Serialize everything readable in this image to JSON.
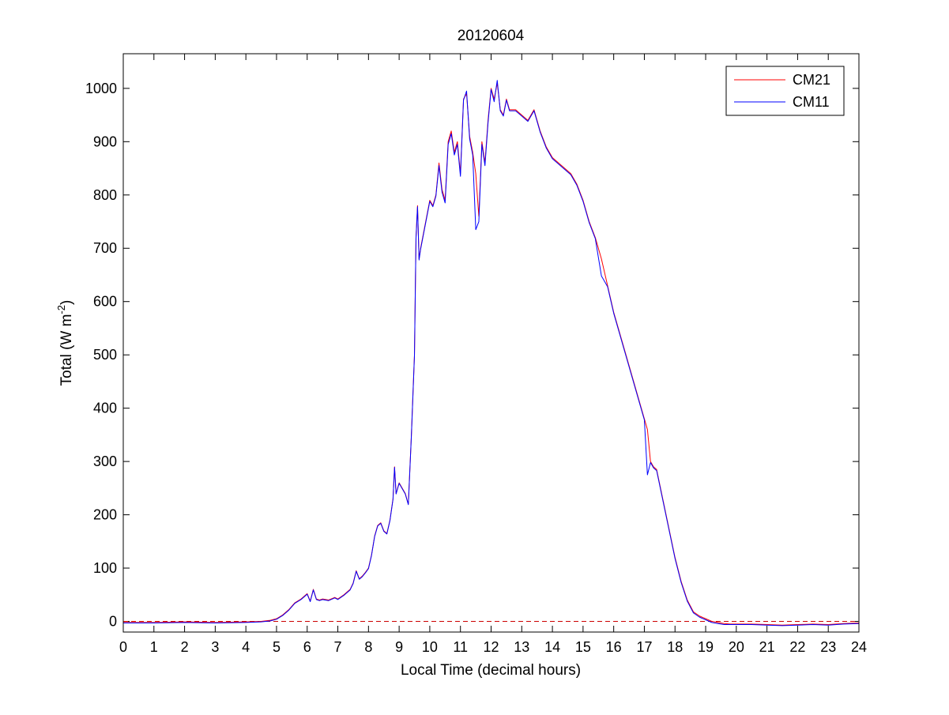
{
  "colors": {
    "background": "#ffffff",
    "axes": "#000000",
    "cm21": "#ff0000",
    "cm11": "#0000ff",
    "zero_line": "#cc0000"
  },
  "chart_data": {
    "type": "line",
    "title": "20120604",
    "xlabel": "Local Time (decimal hours)",
    "ylabel": {
      "main": "Total (W m",
      "superscript": "-2",
      "close": ")"
    },
    "xlim": [
      0,
      24
    ],
    "ylim": [
      -20,
      1065
    ],
    "xticks": [
      0,
      1,
      2,
      3,
      4,
      5,
      6,
      7,
      8,
      9,
      10,
      11,
      12,
      13,
      14,
      15,
      16,
      17,
      18,
      19,
      20,
      21,
      22,
      23,
      24
    ],
    "yticks": [
      0,
      100,
      200,
      300,
      400,
      500,
      600,
      700,
      800,
      900,
      1000
    ],
    "grid": false,
    "legend_position": "top-right",
    "reference_line": {
      "y": 0,
      "style": "dashed"
    },
    "series": [
      {
        "name": "CM21",
        "color": "#ff0000",
        "x": [
          0,
          1,
          2,
          3,
          4,
          4.5,
          4.8,
          5.0,
          5.2,
          5.4,
          5.6,
          5.8,
          6.0,
          6.1,
          6.2,
          6.3,
          6.4,
          6.5,
          6.7,
          6.9,
          7.0,
          7.2,
          7.4,
          7.5,
          7.6,
          7.7,
          7.8,
          7.9,
          8.0,
          8.1,
          8.2,
          8.3,
          8.4,
          8.5,
          8.6,
          8.7,
          8.8,
          8.85,
          8.9,
          9.0,
          9.1,
          9.2,
          9.3,
          9.4,
          9.5,
          9.55,
          9.6,
          9.65,
          9.7,
          9.8,
          9.9,
          10.0,
          10.1,
          10.2,
          10.3,
          10.4,
          10.5,
          10.6,
          10.7,
          10.8,
          10.9,
          11.0,
          11.1,
          11.2,
          11.3,
          11.4,
          11.5,
          11.6,
          11.7,
          11.8,
          11.9,
          12.0,
          12.1,
          12.2,
          12.3,
          12.4,
          12.5,
          12.6,
          12.8,
          13.0,
          13.2,
          13.4,
          13.6,
          13.8,
          14.0,
          14.2,
          14.4,
          14.6,
          14.8,
          15.0,
          15.2,
          15.4,
          15.6,
          15.8,
          16.0,
          16.2,
          16.4,
          16.6,
          16.8,
          17.0,
          17.1,
          17.2,
          17.3,
          17.4,
          17.6,
          17.8,
          18.0,
          18.2,
          18.4,
          18.6,
          18.8,
          19.0,
          19.2,
          19.4,
          19.6,
          19.8,
          20.0,
          20.5,
          21.0,
          21.5,
          22.0,
          22.5,
          23.0,
          23.5,
          24.0
        ],
        "y": [
          -2,
          -2,
          -1,
          -2,
          -1,
          0,
          2,
          5,
          12,
          22,
          35,
          42,
          52,
          38,
          60,
          42,
          40,
          42,
          40,
          45,
          42,
          50,
          60,
          72,
          95,
          80,
          85,
          92,
          100,
          125,
          160,
          180,
          185,
          170,
          165,
          190,
          230,
          290,
          240,
          260,
          250,
          240,
          220,
          350,
          500,
          720,
          780,
          680,
          700,
          730,
          760,
          790,
          780,
          800,
          860,
          810,
          790,
          900,
          920,
          880,
          900,
          840,
          980,
          990,
          910,
          880,
          840,
          760,
          900,
          860,
          940,
          1000,
          980,
          1010,
          960,
          950,
          980,
          960,
          960,
          950,
          940,
          960,
          920,
          890,
          870,
          860,
          850,
          840,
          820,
          790,
          750,
          720,
          680,
          630,
          580,
          540,
          500,
          460,
          420,
          380,
          360,
          300,
          290,
          285,
          230,
          175,
          120,
          75,
          40,
          18,
          10,
          5,
          0,
          -2,
          -4,
          -5,
          -5,
          -5,
          -6,
          -7,
          -6,
          -5,
          -6,
          -4,
          -3
        ]
      },
      {
        "name": "CM11",
        "color": "#0000ff",
        "x": [
          0,
          1,
          2,
          3,
          4,
          4.5,
          4.8,
          5.0,
          5.2,
          5.4,
          5.6,
          5.8,
          6.0,
          6.1,
          6.2,
          6.3,
          6.4,
          6.5,
          6.7,
          6.9,
          7.0,
          7.2,
          7.4,
          7.5,
          7.6,
          7.7,
          7.8,
          7.9,
          8.0,
          8.1,
          8.2,
          8.3,
          8.4,
          8.5,
          8.6,
          8.7,
          8.8,
          8.85,
          8.9,
          9.0,
          9.1,
          9.2,
          9.3,
          9.4,
          9.5,
          9.55,
          9.6,
          9.65,
          9.7,
          9.8,
          9.9,
          10.0,
          10.1,
          10.2,
          10.3,
          10.4,
          10.5,
          10.6,
          10.7,
          10.8,
          10.9,
          11.0,
          11.1,
          11.2,
          11.3,
          11.4,
          11.5,
          11.6,
          11.7,
          11.8,
          11.9,
          12.0,
          12.1,
          12.2,
          12.3,
          12.4,
          12.5,
          12.6,
          12.8,
          13.0,
          13.2,
          13.4,
          13.6,
          13.8,
          14.0,
          14.2,
          14.4,
          14.6,
          14.8,
          15.0,
          15.2,
          15.4,
          15.6,
          15.8,
          16.0,
          16.2,
          16.4,
          16.6,
          16.8,
          17.0,
          17.1,
          17.2,
          17.3,
          17.4,
          17.6,
          17.8,
          18.0,
          18.2,
          18.4,
          18.6,
          18.8,
          19.0,
          19.2,
          19.4,
          19.6,
          19.8,
          20.0,
          20.5,
          21.0,
          21.5,
          22.0,
          22.5,
          23.0,
          23.5,
          24.0
        ],
        "y": [
          -3,
          -3,
          -2,
          -3,
          -2,
          -1,
          1,
          4,
          11,
          21,
          34,
          41,
          51,
          37,
          59,
          41,
          39,
          41,
          39,
          44,
          41,
          49,
          59,
          71,
          94,
          79,
          84,
          91,
          99,
          124,
          159,
          179,
          184,
          169,
          164,
          189,
          229,
          289,
          239,
          259,
          249,
          239,
          219,
          349,
          499,
          718,
          778,
          678,
          698,
          728,
          758,
          788,
          778,
          798,
          855,
          805,
          785,
          895,
          915,
          875,
          895,
          835,
          978,
          995,
          905,
          875,
          735,
          750,
          895,
          855,
          935,
          998,
          975,
          1015,
          958,
          948,
          978,
          958,
          958,
          948,
          938,
          958,
          918,
          888,
          868,
          858,
          848,
          838,
          818,
          788,
          748,
          718,
          648,
          628,
          578,
          538,
          498,
          458,
          418,
          378,
          275,
          298,
          288,
          283,
          228,
          173,
          118,
          73,
          38,
          16,
          8,
          3,
          -2,
          -4,
          -6,
          -6,
          -6,
          -6,
          -7,
          -8,
          -7,
          -6,
          -7,
          -5,
          -4
        ]
      }
    ]
  }
}
